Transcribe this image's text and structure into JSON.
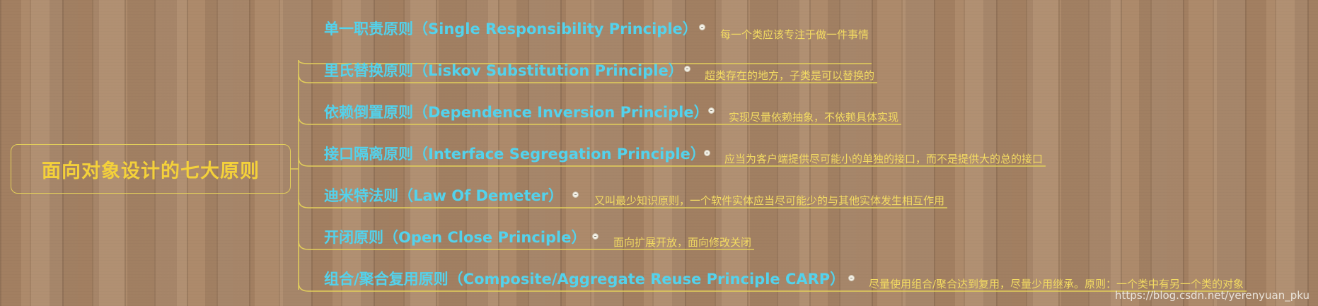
{
  "root": {
    "label": "面向对象设计的七大原则"
  },
  "branches": [
    {
      "title": "单一职责原则（Single Responsibility Principle）",
      "note": "每一个类应该专注于做一件事情"
    },
    {
      "title": "里氏替换原则（Liskov Substitution Principle）",
      "note": "超类存在的地方，子类是可以替换的"
    },
    {
      "title": "依赖倒置原则（Dependence Inversion Principle）",
      "note": "实现尽量依赖抽象，不依赖具体实现"
    },
    {
      "title": "接口隔离原则（Interface Segregation Principle）",
      "note": "应当为客户端提供尽可能小的单独的接口，而不是提供大的总的接口"
    },
    {
      "title": "迪米特法则（Law Of Demeter）",
      "note": "又叫最少知识原则，一个软件实体应当尽可能少的与其他实体发生相互作用"
    },
    {
      "title": "开闭原则（Open Close Principle）",
      "note": "面向扩展开放，面向修改关闭"
    },
    {
      "title": "组合/聚合复用原则（Composite/Aggregate Reuse Principle CARP）",
      "note": "尽量使用组合/聚合达到复用，尽量少用继承。原则：一个类中有另一个类的对象"
    }
  ],
  "watermark": "https://blog.csdn.net/yerenyuan_pku",
  "colors": {
    "root_text": "#f4d13a",
    "branch_text": "#53d2ec",
    "note_text": "#f3db62",
    "line": "#e3cf5a"
  }
}
